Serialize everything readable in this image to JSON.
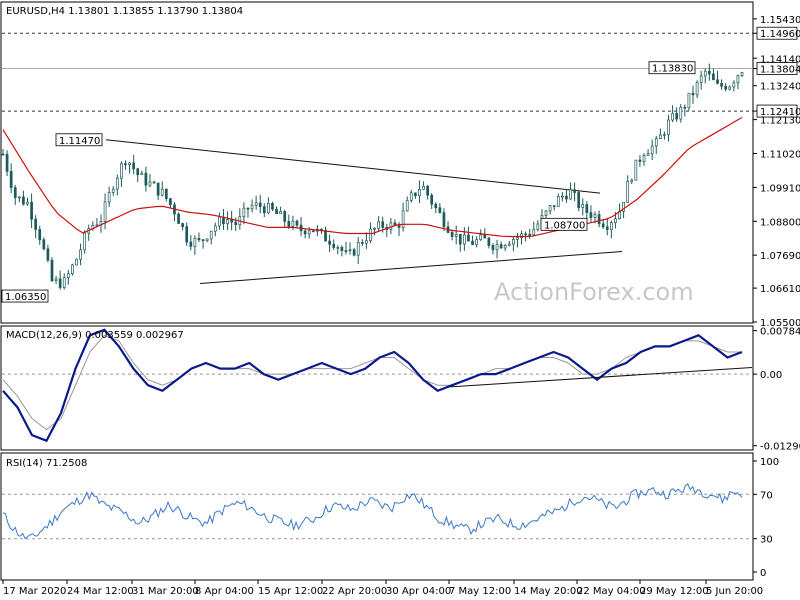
{
  "watermark": "ActionForex.com",
  "colors": {
    "candle": "#1e5a5a",
    "ma": "#cc1111",
    "macd": "#0a1a8a",
    "signal": "#999999",
    "rsi": "#3a78c8",
    "boxed_text": "#0a1a8a",
    "grid": "#000000"
  },
  "chart_data": [
    {
      "type": "candlestick",
      "title": "EURUSD,H4 1.13801 1.13855 1.13790 1.13804",
      "ylim": [
        1.055,
        1.1595
      ],
      "y_ticks": [
        "1.15430",
        "1.14960",
        "1.14140",
        "1.13804",
        "1.13240",
        "1.12410",
        "1.12130",
        "1.11020",
        "1.09910",
        "1.08800",
        "1.07690",
        "1.06610",
        "1.05500"
      ],
      "y_tick_values": [
        1.1543,
        1.1496,
        1.1414,
        1.13804,
        1.1324,
        1.1241,
        1.1213,
        1.1102,
        1.0991,
        1.088,
        1.0769,
        1.0661,
        1.055
      ],
      "highlighted_ticks": [
        "1.14960",
        "1.13804",
        "1.12410"
      ],
      "levels": [
        {
          "value": 1.1496,
          "style": "dashed"
        },
        {
          "value": 1.13804,
          "style": "solid-grey"
        },
        {
          "value": 1.1241,
          "style": "dashed"
        }
      ],
      "annotations": [
        {
          "text": "1.11470",
          "value": 1.1147
        },
        {
          "text": "1.06350",
          "value": 1.0635
        },
        {
          "text": "1.08700",
          "value": 1.087
        },
        {
          "text": "1.13830",
          "value": 1.1383
        }
      ],
      "x_ticks": [
        "17 Mar 2020",
        "24 Mar 12:00",
        "31 Mar 20:00",
        "8 Apr 04:00",
        "15 Apr 12:00",
        "22 Apr 20:00",
        "30 Apr 04:00",
        "7 May 12:00",
        "14 May 20:00",
        "22 May 04:00",
        "29 May 12:00",
        "5 Jun 20:00"
      ],
      "close_path": [
        1.11,
        1.096,
        1.094,
        1.083,
        1.068,
        1.068,
        1.076,
        1.086,
        1.089,
        1.101,
        1.109,
        1.103,
        1.1,
        1.097,
        1.091,
        1.082,
        1.081,
        1.086,
        1.089,
        1.087,
        1.093,
        1.093,
        1.091,
        1.088,
        1.085,
        1.086,
        1.083,
        1.081,
        1.076,
        1.081,
        1.085,
        1.087,
        1.086,
        1.095,
        1.1,
        1.093,
        1.087,
        1.082,
        1.081,
        1.082,
        1.08,
        1.082,
        1.083,
        1.085,
        1.09,
        1.095,
        1.098,
        1.092,
        1.09,
        1.087,
        1.091,
        1.103,
        1.111,
        1.113,
        1.12,
        1.124,
        1.13,
        1.137,
        1.132,
        1.133,
        1.138
      ],
      "ma_path": [
        1.118,
        1.104,
        1.091,
        1.084,
        1.088,
        1.092,
        1.093,
        1.091,
        1.09,
        1.088,
        1.086,
        1.086,
        1.085,
        1.084,
        1.084,
        1.087,
        1.087,
        1.085,
        1.084,
        1.083,
        1.083,
        1.085,
        1.087,
        1.089,
        1.095,
        1.103,
        1.112,
        1.117,
        1.122
      ]
    },
    {
      "type": "line",
      "title": "MACD(12,26,9) 0.003559 0.002967",
      "ylim": [
        -0.0135,
        0.0085
      ],
      "y_ticks": [
        "0.007841",
        "0.00",
        "-0.012906"
      ],
      "y_tick_values": [
        0.007841,
        0.0,
        -0.012906
      ],
      "macd": [
        -0.003,
        -0.006,
        -0.011,
        -0.012,
        -0.007,
        0.001,
        0.007,
        0.008,
        0.005,
        0.001,
        -0.002,
        -0.003,
        -0.001,
        0.001,
        0.002,
        0.001,
        0.001,
        0.002,
        0.0,
        -0.001,
        0.0,
        0.001,
        0.002,
        0.001,
        0.0,
        0.001,
        0.003,
        0.004,
        0.002,
        -0.001,
        -0.003,
        -0.002,
        -0.001,
        0.0,
        0.0,
        0.001,
        0.002,
        0.003,
        0.004,
        0.003,
        0.001,
        -0.001,
        0.001,
        0.002,
        0.004,
        0.005,
        0.005,
        0.006,
        0.007,
        0.005,
        0.003,
        0.004
      ],
      "signal": [
        -0.001,
        -0.004,
        -0.008,
        -0.01,
        -0.008,
        -0.002,
        0.004,
        0.007,
        0.006,
        0.002,
        -0.001,
        -0.002,
        -0.001,
        0.001,
        0.002,
        0.001,
        0.001,
        0.001,
        0.0,
        0.0,
        0.0,
        0.001,
        0.001,
        0.001,
        0.001,
        0.002,
        0.003,
        0.003,
        0.001,
        -0.001,
        -0.002,
        -0.002,
        -0.001,
        0.0,
        0.001,
        0.001,
        0.002,
        0.003,
        0.003,
        0.002,
        0.0,
        0.0,
        0.001,
        0.003,
        0.004,
        0.005,
        0.005,
        0.006,
        0.006,
        0.005,
        0.004,
        0.004
      ]
    },
    {
      "type": "line",
      "title": "RSI(14) 71.2508",
      "ylim": [
        0,
        100
      ],
      "y_ticks": [
        "100",
        "70",
        "30",
        "0"
      ],
      "y_tick_values": [
        100,
        70,
        30,
        0
      ],
      "levels": [
        70,
        30
      ],
      "values": [
        52,
        40,
        32,
        30,
        38,
        45,
        55,
        60,
        66,
        70,
        62,
        58,
        55,
        50,
        44,
        48,
        54,
        60,
        56,
        50,
        46,
        44,
        52,
        58,
        62,
        60,
        55,
        50,
        47,
        44,
        42,
        45,
        48,
        55,
        60,
        58,
        56,
        62,
        64,
        60,
        58,
        66,
        70,
        63,
        55,
        47,
        44,
        40,
        38,
        42,
        46,
        48,
        44,
        42,
        44,
        48,
        52,
        55,
        60,
        66,
        68,
        65,
        60,
        58,
        64,
        70,
        72,
        74,
        70,
        72,
        75,
        76,
        72,
        70,
        65,
        72,
        71
      ]
    }
  ]
}
